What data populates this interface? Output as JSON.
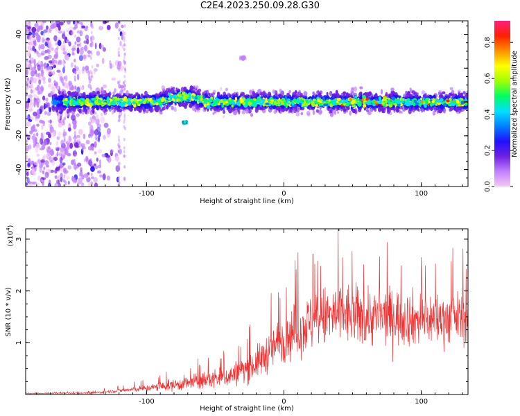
{
  "figure_title": "C2E4.2023.250.09.28.G30",
  "chart_data": [
    {
      "type": "heatmap",
      "title": "C2E4.2023.250.09.28.G30",
      "xlabel": "Height of straight line (km)",
      "ylabel": "Frequency (Hz)",
      "xlim": [
        -188,
        134
      ],
      "ylim": [
        -50,
        48
      ],
      "xticks": [
        -100,
        0,
        100
      ],
      "yticks": [
        -40,
        -20,
        0,
        20,
        40
      ],
      "colorbar": {
        "label": "Normalized spectral amplitude",
        "range": [
          0.0,
          0.92
        ],
        "ticks": [
          0.0,
          0.2,
          0.4,
          0.6,
          0.8
        ],
        "colors": [
          "#f4c8f4",
          "#c080ff",
          "#7020e0",
          "#2010ff",
          "#0080ff",
          "#00e0ff",
          "#00ff60",
          "#a0ff00",
          "#ffff00",
          "#ff9000",
          "#ff2000",
          "#ff2080"
        ]
      },
      "features": [
        {
          "label": "main band",
          "x_range": [
            -168,
            134
          ],
          "center_freq": 0,
          "half_width_hz": 5
        },
        {
          "label": "weak scatter",
          "x_range": [
            -188,
            -115
          ],
          "freq_range": [
            -50,
            48
          ]
        },
        {
          "label": "isolated patch",
          "x": -72,
          "freq": -12
        },
        {
          "label": "upper patch",
          "x": -30,
          "freq": 26
        }
      ]
    },
    {
      "type": "line",
      "xlabel": "Height of straight line (km)",
      "ylabel": "SNR (10 * v/v)",
      "scale_label": "(x10",
      "scale_exponent": "4",
      "scale_suffix": ")",
      "xlim": [
        -188,
        134
      ],
      "ylim": [
        0,
        3.2
      ],
      "xticks": [
        -100,
        0,
        100
      ],
      "yticks": [
        1,
        2,
        3
      ],
      "color": "#ee3333",
      "envelope": [
        {
          "x": -188,
          "mean": 0.02,
          "amp": 0.01
        },
        {
          "x": -140,
          "mean": 0.03,
          "amp": 0.03
        },
        {
          "x": -100,
          "mean": 0.12,
          "amp": 0.12
        },
        {
          "x": -70,
          "mean": 0.22,
          "amp": 0.28
        },
        {
          "x": -40,
          "mean": 0.35,
          "amp": 0.4
        },
        {
          "x": -20,
          "mean": 0.6,
          "amp": 0.6
        },
        {
          "x": 0,
          "mean": 1.1,
          "amp": 0.9
        },
        {
          "x": 20,
          "mean": 1.4,
          "amp": 1.1
        },
        {
          "x": 40,
          "mean": 1.55,
          "amp": 1.2
        },
        {
          "x": 60,
          "mean": 1.5,
          "amp": 1.1
        },
        {
          "x": 80,
          "mean": 1.5,
          "amp": 1.05
        },
        {
          "x": 100,
          "mean": 1.45,
          "amp": 1.0
        },
        {
          "x": 134,
          "mean": 1.5,
          "amp": 0.9
        }
      ]
    }
  ]
}
